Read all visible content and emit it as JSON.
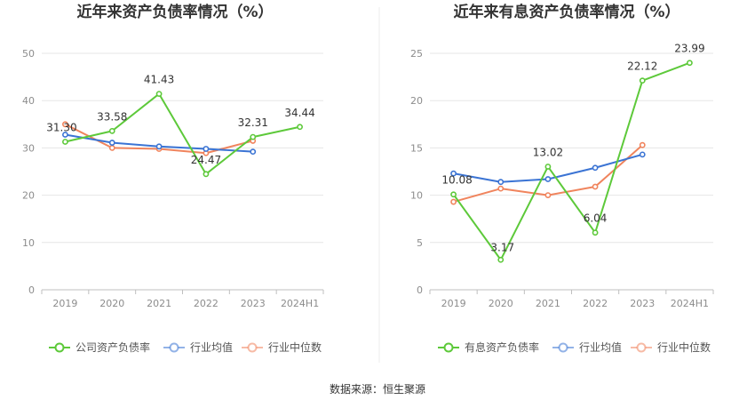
{
  "source_label": "数据来源：恒生聚源",
  "chart_data": [
    {
      "type": "line",
      "title": "近年来资产负债率情况（%）",
      "categories": [
        "2019",
        "2020",
        "2021",
        "2022",
        "2023",
        "2024H1"
      ],
      "ylim": [
        0,
        50
      ],
      "yticks": [
        0,
        10,
        20,
        30,
        40,
        50
      ],
      "grid": true,
      "series": [
        {
          "name": "公司资产负债率",
          "color": "#5dc93a",
          "values": [
            31.3,
            33.58,
            41.43,
            24.47,
            32.31,
            34.44
          ],
          "labels": [
            "31.30",
            "33.58",
            "41.43",
            "24.47",
            "32.31",
            "34.44"
          ],
          "legend_icon": "green-circle-line-icon"
        },
        {
          "name": "行业均值",
          "color": "#3b74d4",
          "values": [
            32.8,
            31.1,
            30.3,
            29.8,
            29.2,
            null
          ],
          "legend_icon": "blue-circle-line-icon"
        },
        {
          "name": "行业中位数",
          "color": "#f0845d",
          "values": [
            35.0,
            30.0,
            29.8,
            28.9,
            31.5,
            null
          ],
          "legend_icon": "orange-circle-line-icon"
        }
      ]
    },
    {
      "type": "line",
      "title": "近年来有息资产负债率情况（%）",
      "categories": [
        "2019",
        "2020",
        "2021",
        "2022",
        "2023",
        "2024H1"
      ],
      "ylim": [
        0,
        25
      ],
      "yticks": [
        0,
        5,
        10,
        15,
        20,
        25
      ],
      "grid": true,
      "series": [
        {
          "name": "有息资产负债率",
          "color": "#5dc93a",
          "values": [
            10.08,
            3.17,
            13.02,
            6.04,
            22.12,
            23.99
          ],
          "labels": [
            "10.08",
            "3.17",
            "13.02",
            "6.04",
            "22.12",
            "23.99"
          ],
          "legend_icon": "green-circle-line-icon"
        },
        {
          "name": "行业均值",
          "color": "#3b74d4",
          "values": [
            12.3,
            11.4,
            11.7,
            12.9,
            14.3,
            null
          ],
          "legend_icon": "blue-circle-line-icon"
        },
        {
          "name": "行业中位数",
          "color": "#f0845d",
          "values": [
            9.3,
            10.7,
            10.0,
            10.9,
            15.3,
            null
          ],
          "legend_icon": "orange-circle-line-icon"
        }
      ]
    }
  ]
}
